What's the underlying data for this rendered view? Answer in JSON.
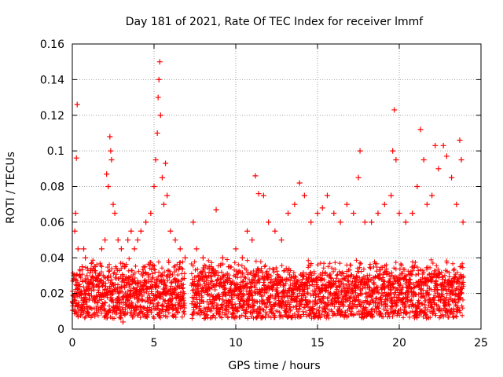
{
  "chart_data": {
    "type": "scatter",
    "title": "Day 181 of 2021, Rate Of TEC Index for receiver lmmf",
    "xlabel": "GPS time / hours",
    "ylabel": "ROTI / TECUs",
    "xlim": [
      0,
      25
    ],
    "ylim": [
      0,
      0.16
    ],
    "xticks": [
      0,
      5,
      10,
      15,
      20,
      25
    ],
    "xtick_labels": [
      "0",
      "5",
      "10",
      "15",
      "20",
      "25"
    ],
    "yticks": [
      0,
      0.02,
      0.04,
      0.06,
      0.08,
      0.1,
      0.12,
      0.14,
      0.16
    ],
    "ytick_labels": [
      "0",
      "0.02",
      "0.04",
      "0.06",
      "0.08",
      "0.1",
      "0.12",
      "0.14",
      "0.16"
    ],
    "grid": true,
    "marker": "+",
    "color": "#ff0000",
    "series": [
      {
        "name": "ROTI",
        "points": [
          [
            0.05,
            0.015
          ],
          [
            0.1,
            0.03
          ],
          [
            0.15,
            0.055
          ],
          [
            0.2,
            0.065
          ],
          [
            0.25,
            0.096
          ],
          [
            0.3,
            0.126
          ],
          [
            0.35,
            0.045
          ],
          [
            0.4,
            0.025
          ],
          [
            0.5,
            0.02
          ],
          [
            0.6,
            0.035
          ],
          [
            0.7,
            0.045
          ],
          [
            0.8,
            0.04
          ],
          [
            0.9,
            0.03
          ],
          [
            1.0,
            0.02
          ],
          [
            1.2,
            0.025
          ],
          [
            1.4,
            0.035
          ],
          [
            1.6,
            0.03
          ],
          [
            1.8,
            0.045
          ],
          [
            2.0,
            0.05
          ],
          [
            2.1,
            0.087
          ],
          [
            2.2,
            0.08
          ],
          [
            2.3,
            0.108
          ],
          [
            2.35,
            0.1
          ],
          [
            2.4,
            0.095
          ],
          [
            2.5,
            0.07
          ],
          [
            2.6,
            0.065
          ],
          [
            2.8,
            0.05
          ],
          [
            3.0,
            0.045
          ],
          [
            3.1,
            0.004
          ],
          [
            3.2,
            0.035
          ],
          [
            3.4,
            0.05
          ],
          [
            3.6,
            0.055
          ],
          [
            3.8,
            0.045
          ],
          [
            4.0,
            0.05
          ],
          [
            4.2,
            0.055
          ],
          [
            4.5,
            0.06
          ],
          [
            4.8,
            0.065
          ],
          [
            5.0,
            0.08
          ],
          [
            5.1,
            0.095
          ],
          [
            5.2,
            0.11
          ],
          [
            5.25,
            0.13
          ],
          [
            5.3,
            0.14
          ],
          [
            5.35,
            0.15
          ],
          [
            5.4,
            0.12
          ],
          [
            5.5,
            0.085
          ],
          [
            5.6,
            0.07
          ],
          [
            5.7,
            0.093
          ],
          [
            5.8,
            0.075
          ],
          [
            6.0,
            0.055
          ],
          [
            6.3,
            0.05
          ],
          [
            6.6,
            0.045
          ],
          [
            6.9,
            0.04
          ],
          [
            7.4,
            0.06
          ],
          [
            7.6,
            0.045
          ],
          [
            8.0,
            0.04
          ],
          [
            8.5,
            0.035
          ],
          [
            8.8,
            0.067
          ],
          [
            9.2,
            0.04
          ],
          [
            9.6,
            0.035
          ],
          [
            10.0,
            0.045
          ],
          [
            10.4,
            0.04
          ],
          [
            10.7,
            0.055
          ],
          [
            11.0,
            0.05
          ],
          [
            11.2,
            0.086
          ],
          [
            11.4,
            0.076
          ],
          [
            11.7,
            0.075
          ],
          [
            12.0,
            0.06
          ],
          [
            12.4,
            0.055
          ],
          [
            12.8,
            0.05
          ],
          [
            13.2,
            0.065
          ],
          [
            13.6,
            0.07
          ],
          [
            13.9,
            0.082
          ],
          [
            14.2,
            0.075
          ],
          [
            14.6,
            0.06
          ],
          [
            15.0,
            0.065
          ],
          [
            15.3,
            0.068
          ],
          [
            15.6,
            0.075
          ],
          [
            16.0,
            0.065
          ],
          [
            16.4,
            0.06
          ],
          [
            16.8,
            0.07
          ],
          [
            17.2,
            0.065
          ],
          [
            17.5,
            0.085
          ],
          [
            17.6,
            0.1
          ],
          [
            17.9,
            0.06
          ],
          [
            18.3,
            0.06
          ],
          [
            18.7,
            0.065
          ],
          [
            19.1,
            0.07
          ],
          [
            19.5,
            0.075
          ],
          [
            19.6,
            0.1
          ],
          [
            19.7,
            0.123
          ],
          [
            19.8,
            0.095
          ],
          [
            20.0,
            0.065
          ],
          [
            20.4,
            0.06
          ],
          [
            20.8,
            0.065
          ],
          [
            21.1,
            0.08
          ],
          [
            21.3,
            0.112
          ],
          [
            21.5,
            0.095
          ],
          [
            21.7,
            0.07
          ],
          [
            22.0,
            0.075
          ],
          [
            22.2,
            0.103
          ],
          [
            22.4,
            0.09
          ],
          [
            22.7,
            0.103
          ],
          [
            22.9,
            0.097
          ],
          [
            23.2,
            0.085
          ],
          [
            23.5,
            0.07
          ],
          [
            23.7,
            0.106
          ],
          [
            23.8,
            0.095
          ],
          [
            23.9,
            0.06
          ]
        ]
      }
    ]
  }
}
